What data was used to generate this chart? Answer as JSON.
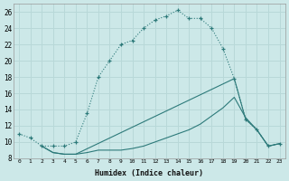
{
  "xlabel": "Humidex (Indice chaleur)",
  "bg_color": "#cce8e8",
  "line_color": "#2d7a7a",
  "grid_color": "#b8d8d8",
  "xlim": [
    -0.5,
    23.5
  ],
  "ylim": [
    8,
    27
  ],
  "xticks": [
    0,
    1,
    2,
    3,
    4,
    5,
    6,
    7,
    8,
    9,
    10,
    11,
    12,
    13,
    14,
    15,
    16,
    17,
    18,
    19,
    20,
    21,
    22,
    23
  ],
  "yticks": [
    8,
    10,
    12,
    14,
    16,
    18,
    20,
    22,
    24,
    26
  ],
  "line1_x": [
    0,
    1,
    2,
    3,
    4,
    5,
    6,
    7,
    8,
    9,
    10,
    11,
    12,
    13,
    14,
    15,
    16,
    17,
    18,
    19,
    20,
    21,
    22,
    23
  ],
  "line1_y": [
    11,
    10.5,
    9.5,
    9.5,
    9.5,
    10,
    13.5,
    18,
    20,
    22,
    22.5,
    24,
    25,
    25.5,
    26.2,
    25.2,
    25.2,
    24,
    21.5,
    17.8,
    12.8,
    11.5,
    9.5,
    9.8
  ],
  "line2_x": [
    2,
    3,
    4,
    5,
    6,
    7,
    8,
    9,
    10,
    11,
    12,
    13,
    14,
    15,
    16,
    17,
    18,
    19,
    20,
    21,
    22,
    23
  ],
  "line2_y": [
    9.5,
    8.7,
    8.5,
    8.5,
    8.7,
    9,
    9,
    9,
    9.2,
    9.5,
    10,
    10.5,
    11,
    11.5,
    12.2,
    13.2,
    14.2,
    15.5,
    13.0,
    11.5,
    9.5,
    9.8
  ],
  "line3_x": [
    2,
    3,
    4,
    5,
    19,
    20,
    21,
    22,
    23
  ],
  "line3_y": [
    9.5,
    8.7,
    8.5,
    8.5,
    17.8,
    12.8,
    11.5,
    9.5,
    9.8
  ]
}
